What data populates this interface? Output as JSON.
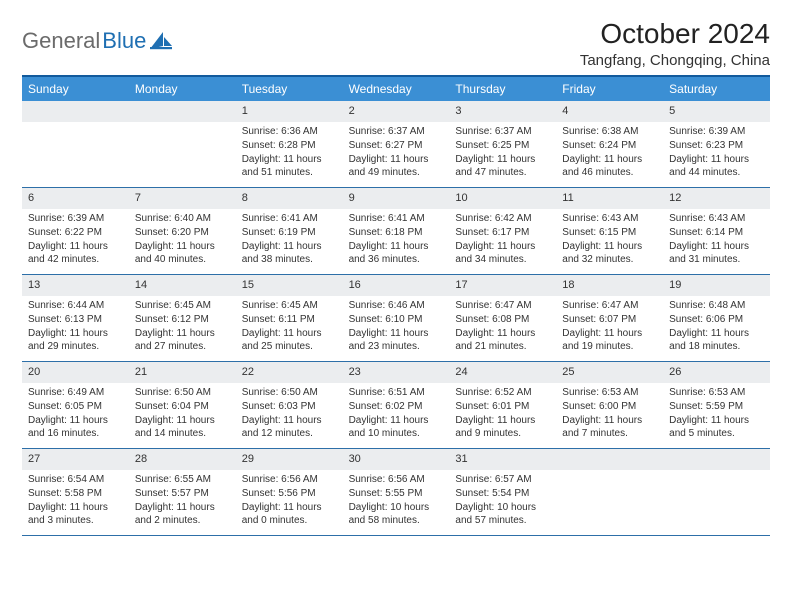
{
  "logo": {
    "word1": "General",
    "word2": "Blue"
  },
  "title": "October 2024",
  "subtitle": "Tangfang, Chongqing, China",
  "colors": {
    "header_bg": "#3b8fd4",
    "header_border_top": "#125a9c",
    "week_divider": "#2d6fa8",
    "daynum_bg": "#ebedef",
    "logo_gray": "#6b6b6b",
    "logo_blue": "#1f6fb2"
  },
  "weekdays": [
    "Sunday",
    "Monday",
    "Tuesday",
    "Wednesday",
    "Thursday",
    "Friday",
    "Saturday"
  ],
  "weeks": [
    [
      {
        "day": "",
        "sunrise": "",
        "sunset": "",
        "daylight": ""
      },
      {
        "day": "",
        "sunrise": "",
        "sunset": "",
        "daylight": ""
      },
      {
        "day": "1",
        "sunrise": "Sunrise: 6:36 AM",
        "sunset": "Sunset: 6:28 PM",
        "daylight": "Daylight: 11 hours and 51 minutes."
      },
      {
        "day": "2",
        "sunrise": "Sunrise: 6:37 AM",
        "sunset": "Sunset: 6:27 PM",
        "daylight": "Daylight: 11 hours and 49 minutes."
      },
      {
        "day": "3",
        "sunrise": "Sunrise: 6:37 AM",
        "sunset": "Sunset: 6:25 PM",
        "daylight": "Daylight: 11 hours and 47 minutes."
      },
      {
        "day": "4",
        "sunrise": "Sunrise: 6:38 AM",
        "sunset": "Sunset: 6:24 PM",
        "daylight": "Daylight: 11 hours and 46 minutes."
      },
      {
        "day": "5",
        "sunrise": "Sunrise: 6:39 AM",
        "sunset": "Sunset: 6:23 PM",
        "daylight": "Daylight: 11 hours and 44 minutes."
      }
    ],
    [
      {
        "day": "6",
        "sunrise": "Sunrise: 6:39 AM",
        "sunset": "Sunset: 6:22 PM",
        "daylight": "Daylight: 11 hours and 42 minutes."
      },
      {
        "day": "7",
        "sunrise": "Sunrise: 6:40 AM",
        "sunset": "Sunset: 6:20 PM",
        "daylight": "Daylight: 11 hours and 40 minutes."
      },
      {
        "day": "8",
        "sunrise": "Sunrise: 6:41 AM",
        "sunset": "Sunset: 6:19 PM",
        "daylight": "Daylight: 11 hours and 38 minutes."
      },
      {
        "day": "9",
        "sunrise": "Sunrise: 6:41 AM",
        "sunset": "Sunset: 6:18 PM",
        "daylight": "Daylight: 11 hours and 36 minutes."
      },
      {
        "day": "10",
        "sunrise": "Sunrise: 6:42 AM",
        "sunset": "Sunset: 6:17 PM",
        "daylight": "Daylight: 11 hours and 34 minutes."
      },
      {
        "day": "11",
        "sunrise": "Sunrise: 6:43 AM",
        "sunset": "Sunset: 6:15 PM",
        "daylight": "Daylight: 11 hours and 32 minutes."
      },
      {
        "day": "12",
        "sunrise": "Sunrise: 6:43 AM",
        "sunset": "Sunset: 6:14 PM",
        "daylight": "Daylight: 11 hours and 31 minutes."
      }
    ],
    [
      {
        "day": "13",
        "sunrise": "Sunrise: 6:44 AM",
        "sunset": "Sunset: 6:13 PM",
        "daylight": "Daylight: 11 hours and 29 minutes."
      },
      {
        "day": "14",
        "sunrise": "Sunrise: 6:45 AM",
        "sunset": "Sunset: 6:12 PM",
        "daylight": "Daylight: 11 hours and 27 minutes."
      },
      {
        "day": "15",
        "sunrise": "Sunrise: 6:45 AM",
        "sunset": "Sunset: 6:11 PM",
        "daylight": "Daylight: 11 hours and 25 minutes."
      },
      {
        "day": "16",
        "sunrise": "Sunrise: 6:46 AM",
        "sunset": "Sunset: 6:10 PM",
        "daylight": "Daylight: 11 hours and 23 minutes."
      },
      {
        "day": "17",
        "sunrise": "Sunrise: 6:47 AM",
        "sunset": "Sunset: 6:08 PM",
        "daylight": "Daylight: 11 hours and 21 minutes."
      },
      {
        "day": "18",
        "sunrise": "Sunrise: 6:47 AM",
        "sunset": "Sunset: 6:07 PM",
        "daylight": "Daylight: 11 hours and 19 minutes."
      },
      {
        "day": "19",
        "sunrise": "Sunrise: 6:48 AM",
        "sunset": "Sunset: 6:06 PM",
        "daylight": "Daylight: 11 hours and 18 minutes."
      }
    ],
    [
      {
        "day": "20",
        "sunrise": "Sunrise: 6:49 AM",
        "sunset": "Sunset: 6:05 PM",
        "daylight": "Daylight: 11 hours and 16 minutes."
      },
      {
        "day": "21",
        "sunrise": "Sunrise: 6:50 AM",
        "sunset": "Sunset: 6:04 PM",
        "daylight": "Daylight: 11 hours and 14 minutes."
      },
      {
        "day": "22",
        "sunrise": "Sunrise: 6:50 AM",
        "sunset": "Sunset: 6:03 PM",
        "daylight": "Daylight: 11 hours and 12 minutes."
      },
      {
        "day": "23",
        "sunrise": "Sunrise: 6:51 AM",
        "sunset": "Sunset: 6:02 PM",
        "daylight": "Daylight: 11 hours and 10 minutes."
      },
      {
        "day": "24",
        "sunrise": "Sunrise: 6:52 AM",
        "sunset": "Sunset: 6:01 PM",
        "daylight": "Daylight: 11 hours and 9 minutes."
      },
      {
        "day": "25",
        "sunrise": "Sunrise: 6:53 AM",
        "sunset": "Sunset: 6:00 PM",
        "daylight": "Daylight: 11 hours and 7 minutes."
      },
      {
        "day": "26",
        "sunrise": "Sunrise: 6:53 AM",
        "sunset": "Sunset: 5:59 PM",
        "daylight": "Daylight: 11 hours and 5 minutes."
      }
    ],
    [
      {
        "day": "27",
        "sunrise": "Sunrise: 6:54 AM",
        "sunset": "Sunset: 5:58 PM",
        "daylight": "Daylight: 11 hours and 3 minutes."
      },
      {
        "day": "28",
        "sunrise": "Sunrise: 6:55 AM",
        "sunset": "Sunset: 5:57 PM",
        "daylight": "Daylight: 11 hours and 2 minutes."
      },
      {
        "day": "29",
        "sunrise": "Sunrise: 6:56 AM",
        "sunset": "Sunset: 5:56 PM",
        "daylight": "Daylight: 11 hours and 0 minutes."
      },
      {
        "day": "30",
        "sunrise": "Sunrise: 6:56 AM",
        "sunset": "Sunset: 5:55 PM",
        "daylight": "Daylight: 10 hours and 58 minutes."
      },
      {
        "day": "31",
        "sunrise": "Sunrise: 6:57 AM",
        "sunset": "Sunset: 5:54 PM",
        "daylight": "Daylight: 10 hours and 57 minutes."
      },
      {
        "day": "",
        "sunrise": "",
        "sunset": "",
        "daylight": ""
      },
      {
        "day": "",
        "sunrise": "",
        "sunset": "",
        "daylight": ""
      }
    ]
  ]
}
